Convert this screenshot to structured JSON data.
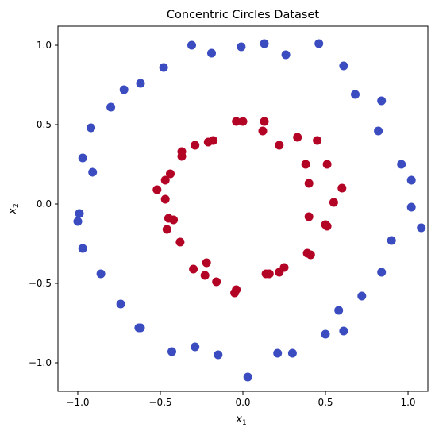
{
  "chart_data": {
    "type": "scatter",
    "title": "Concentric Circles Dataset",
    "xlabel": {
      "base": "x",
      "sub": "1"
    },
    "ylabel": {
      "base": "x",
      "sub": "2"
    },
    "xlim": [
      -1.12,
      1.12
    ],
    "ylim": [
      -1.18,
      1.12
    ],
    "xticks": [
      -1.0,
      -0.5,
      0.0,
      0.5,
      1.0
    ],
    "xtick_labels": [
      "−1.0",
      "−0.5",
      "0.0",
      "0.5",
      "1.0"
    ],
    "yticks": [
      -1.0,
      -0.5,
      0.0,
      0.5,
      1.0
    ],
    "ytick_labels": [
      "−1.0",
      "−0.5",
      "0.0",
      "0.5",
      "1.0"
    ],
    "grid": false,
    "series": [
      {
        "color": "#3b4cc0",
        "points": [
          [
            -0.31,
            1.0
          ],
          [
            -0.19,
            0.95
          ],
          [
            -0.01,
            0.99
          ],
          [
            0.13,
            1.01
          ],
          [
            0.26,
            0.94
          ],
          [
            0.46,
            1.01
          ],
          [
            0.61,
            0.87
          ],
          [
            0.68,
            0.69
          ],
          [
            0.84,
            0.65
          ],
          [
            0.82,
            0.46
          ],
          [
            0.96,
            0.25
          ],
          [
            1.02,
            0.15
          ],
          [
            1.02,
            -0.02
          ],
          [
            1.08,
            -0.15
          ],
          [
            0.9,
            -0.23
          ],
          [
            0.84,
            -0.43
          ],
          [
            0.72,
            -0.58
          ],
          [
            0.58,
            -0.67
          ],
          [
            0.61,
            -0.8
          ],
          [
            0.5,
            -0.82
          ],
          [
            0.3,
            -0.94
          ],
          [
            0.21,
            -0.94
          ],
          [
            0.03,
            -1.09
          ],
          [
            -0.15,
            -0.95
          ],
          [
            -0.29,
            -0.9
          ],
          [
            -0.43,
            -0.93
          ],
          [
            -0.62,
            -0.78
          ],
          [
            -0.63,
            -0.78
          ],
          [
            -0.74,
            -0.63
          ],
          [
            -0.86,
            -0.44
          ],
          [
            -0.97,
            -0.28
          ],
          [
            -0.99,
            -0.06
          ],
          [
            -1.0,
            -0.11
          ],
          [
            -0.97,
            0.29
          ],
          [
            -0.91,
            0.2
          ],
          [
            -0.92,
            0.48
          ],
          [
            -0.8,
            0.61
          ],
          [
            -0.72,
            0.72
          ],
          [
            -0.62,
            0.76
          ],
          [
            -0.48,
            0.86
          ]
        ]
      },
      {
        "color": "#b40426",
        "points": [
          [
            -0.04,
            0.52
          ],
          [
            0.0,
            0.52
          ],
          [
            0.13,
            0.52
          ],
          [
            0.12,
            0.46
          ],
          [
            0.33,
            0.42
          ],
          [
            0.45,
            0.4
          ],
          [
            0.22,
            0.37
          ],
          [
            0.38,
            0.25
          ],
          [
            0.51,
            0.25
          ],
          [
            0.4,
            0.13
          ],
          [
            0.6,
            0.1
          ],
          [
            0.55,
            0.01
          ],
          [
            0.4,
            -0.08
          ],
          [
            0.5,
            -0.13
          ],
          [
            0.51,
            -0.14
          ],
          [
            0.39,
            -0.31
          ],
          [
            0.41,
            -0.32
          ],
          [
            0.25,
            -0.4
          ],
          [
            0.22,
            -0.43
          ],
          [
            0.16,
            -0.44
          ],
          [
            0.14,
            -0.44
          ],
          [
            -0.04,
            -0.54
          ],
          [
            -0.05,
            -0.56
          ],
          [
            -0.16,
            -0.49
          ],
          [
            -0.23,
            -0.45
          ],
          [
            -0.22,
            -0.37
          ],
          [
            -0.3,
            -0.41
          ],
          [
            -0.38,
            -0.24
          ],
          [
            -0.45,
            -0.09
          ],
          [
            -0.42,
            -0.1
          ],
          [
            -0.46,
            -0.16
          ],
          [
            -0.47,
            0.03
          ],
          [
            -0.47,
            0.15
          ],
          [
            -0.44,
            0.19
          ],
          [
            -0.52,
            0.09
          ],
          [
            -0.37,
            0.3
          ],
          [
            -0.37,
            0.33
          ],
          [
            -0.29,
            0.37
          ],
          [
            -0.21,
            0.39
          ],
          [
            -0.18,
            0.4
          ]
        ]
      }
    ]
  }
}
